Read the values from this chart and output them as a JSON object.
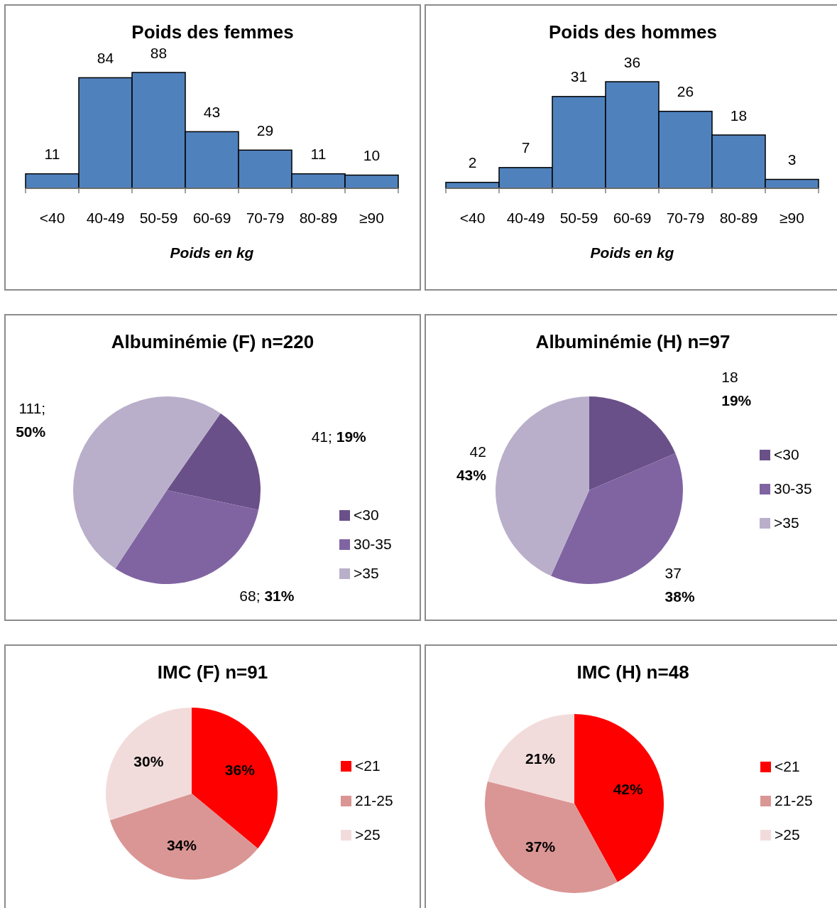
{
  "chart_data": [
    {
      "type": "bar",
      "title": "Poids des femmes",
      "xlabel": "Poids en kg",
      "categories": [
        "<40",
        "40-49",
        "50-59",
        "60-69",
        "70-79",
        "80-89",
        "≥90"
      ],
      "values": [
        11,
        84,
        88,
        43,
        29,
        11,
        10
      ],
      "color": "#4f81bd",
      "data_labels": true
    },
    {
      "type": "bar",
      "title": "Poids des hommes",
      "xlabel": "Poids en kg",
      "categories": [
        "<40",
        "40-49",
        "50-59",
        "60-69",
        "70-79",
        "80-89",
        "≥90"
      ],
      "values": [
        2,
        7,
        31,
        36,
        26,
        18,
        3
      ],
      "color": "#4f81bd",
      "data_labels": true
    },
    {
      "type": "pie",
      "title": "Albuminémie (F) n=220",
      "categories": [
        "<30",
        "30-35",
        ">35"
      ],
      "values": [
        41,
        68,
        111
      ],
      "colors": [
        "#6a5088",
        "#8064a2",
        "#b9afca"
      ],
      "value_labels": [
        "41; 19%",
        "68; 31%",
        "111;\n50%"
      ],
      "legend": "right"
    },
    {
      "type": "pie",
      "title": "Albuminémie (H) n=97",
      "categories": [
        "<30",
        "30-35",
        ">35"
      ],
      "values": [
        18,
        37,
        42
      ],
      "colors": [
        "#6a5088",
        "#8064a2",
        "#b9afca"
      ],
      "value_labels": [
        "18\n19%",
        "37\n38%",
        "42\n43%"
      ],
      "legend": "right"
    },
    {
      "type": "pie",
      "title": "IMC (F) n=91",
      "categories": [
        "<21",
        "21-25",
        ">25"
      ],
      "values": [
        36,
        34,
        30
      ],
      "colors": [
        "#ff0000",
        "#da9694",
        "#f2dcdb"
      ],
      "value_labels": [
        "36%",
        "34%",
        "30%"
      ],
      "legend": "right"
    },
    {
      "type": "pie",
      "title": "IMC (H) n=48",
      "categories": [
        "<21",
        "21-25",
        ">25"
      ],
      "values": [
        42,
        37,
        21
      ],
      "colors": [
        "#ff0000",
        "#da9694",
        "#f2dcdb"
      ],
      "value_labels": [
        "42%",
        "37%",
        "21%"
      ],
      "legend": "right"
    }
  ]
}
